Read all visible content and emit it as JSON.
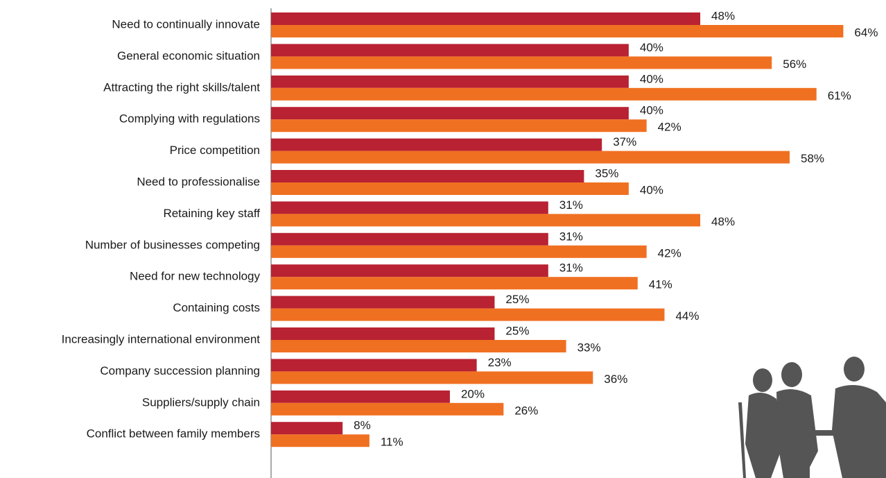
{
  "chart_data": {
    "type": "hbar",
    "categories": [
      "Need to continually innovate",
      "General economic situation",
      "Attracting the right skills/talent",
      "Complying with regulations",
      "Price competition",
      "Need to professionalise",
      "Retaining key staff",
      "Number of businesses competing",
      "Need for new technology",
      "Containing costs",
      "Increasingly international environment",
      "Company succession planning",
      "Suppliers/supply chain",
      "Conflict between family members"
    ],
    "series": [
      {
        "color": "#b92232",
        "values": [
          48,
          40,
          40,
          40,
          37,
          35,
          31,
          31,
          31,
          25,
          25,
          23,
          20,
          8
        ],
        "value_labels": [
          "48%",
          "40%",
          "40%",
          "40%",
          "37%",
          "35%",
          "31%",
          "31%",
          "31%",
          "25%",
          "25%",
          "23%",
          "20%",
          "8%"
        ]
      },
      {
        "color": "#f07022",
        "values": [
          64,
          56,
          61,
          42,
          58,
          40,
          48,
          42,
          41,
          44,
          33,
          36,
          26,
          11
        ],
        "value_labels": [
          "64%",
          "56%",
          "61%",
          "42%",
          "58%",
          "40%",
          "48%",
          "42%",
          "41%",
          "44%",
          "33%",
          "36%",
          "26%",
          "11%"
        ]
      }
    ],
    "xlim": [
      0,
      68
    ]
  }
}
